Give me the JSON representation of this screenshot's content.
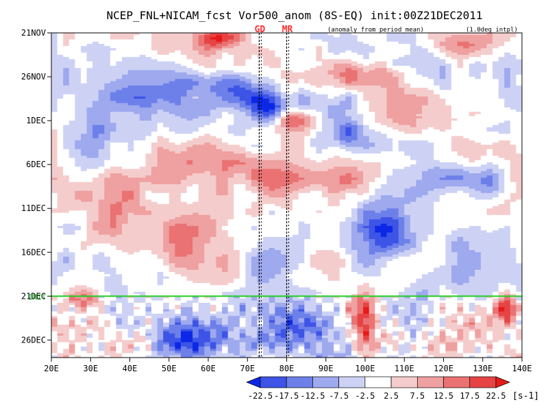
{
  "chart_data": {
    "type": "heatmap",
    "title": "NCEP_FNL+NICAM_fcst Vor500_anom (8S-EQ) init:00Z21DEC2011",
    "subtitle_left": "(anomaly from period mean)",
    "subtitle_right": "(1.0deg intpl)",
    "xlabel": "",
    "ylabel": "",
    "x_range": [
      20,
      140
    ],
    "x_ticks": [
      {
        "value": 20,
        "label": "20E"
      },
      {
        "value": 30,
        "label": "30E"
      },
      {
        "value": 40,
        "label": "40E"
      },
      {
        "value": 50,
        "label": "50E"
      },
      {
        "value": 60,
        "label": "60E"
      },
      {
        "value": 70,
        "label": "70E"
      },
      {
        "value": 80,
        "label": "80E"
      },
      {
        "value": 90,
        "label": "90E"
      },
      {
        "value": 100,
        "label": "100E"
      },
      {
        "value": 110,
        "label": "110E"
      },
      {
        "value": 120,
        "label": "120E"
      },
      {
        "value": 130,
        "label": "130E"
      },
      {
        "value": 140,
        "label": "140E"
      }
    ],
    "y_range_days": [
      0,
      37
    ],
    "y_ticks": [
      {
        "day": 0,
        "label": "21NOV"
      },
      {
        "day": 5,
        "label": "26NOV"
      },
      {
        "day": 10,
        "label": "1DEC"
      },
      {
        "day": 15,
        "label": "6DEC"
      },
      {
        "day": 20,
        "label": "11DEC"
      },
      {
        "day": 25,
        "label": "16DEC"
      },
      {
        "day": 30,
        "label": "21DEC"
      },
      {
        "day": 35,
        "label": "26DEC"
      }
    ],
    "init_line": {
      "day": 30,
      "label": "INIT",
      "color": "#22cc22"
    },
    "markers": [
      {
        "label": "GD",
        "lon": 73,
        "color": "#ff3030"
      },
      {
        "label": "MR",
        "lon": 80,
        "color": "#ff3030"
      }
    ],
    "colorbar": {
      "levels": [
        -22.5,
        -17.5,
        -12.5,
        -7.5,
        -2.5,
        2.5,
        7.5,
        12.5,
        17.5,
        22.5
      ],
      "tick_labels": [
        "-22.5",
        "-17.5",
        "-12.5",
        "-7.5",
        "-2.5",
        "2.5",
        "7.5",
        "12.5",
        "17.5",
        "22.5"
      ],
      "colors": [
        "#0c28e6",
        "#3d54e6",
        "#6d80ea",
        "#9ea9ee",
        "#cdd2f5",
        "#ffffff",
        "#f5cccc",
        "#efa0a0",
        "#ea7272",
        "#e64444",
        "#e61a1a"
      ],
      "unit": "[s-1]"
    },
    "features": [
      {
        "lon": 45,
        "day": 6,
        "value": -14,
        "sx": 14,
        "sy": 3
      },
      {
        "lon": 68,
        "day": 7,
        "value": -18,
        "sx": 9,
        "sy": 2.2
      },
      {
        "lon": 76,
        "day": 9,
        "value": -22,
        "sx": 5,
        "sy": 1.6
      },
      {
        "lon": 90,
        "day": 8,
        "value": -12,
        "sx": 12,
        "sy": 2
      },
      {
        "lon": 95,
        "day": 11.5,
        "value": -17,
        "sx": 7,
        "sy": 1.8
      },
      {
        "lon": 110,
        "day": 12,
        "value": -10,
        "sx": 8,
        "sy": 2
      },
      {
        "lon": 120,
        "day": 16,
        "value": -14,
        "sx": 9,
        "sy": 2.2
      },
      {
        "lon": 132,
        "day": 17,
        "value": -13,
        "sx": 6,
        "sy": 2
      },
      {
        "lon": 105,
        "day": 22,
        "value": -15,
        "sx": 6,
        "sy": 4
      },
      {
        "lon": 100,
        "day": 26,
        "value": -10,
        "sx": 5,
        "sy": 3
      },
      {
        "lon": 75,
        "day": 27,
        "value": -16,
        "sx": 8,
        "sy": 3
      },
      {
        "lon": 55,
        "day": 35,
        "value": -22,
        "sx": 8,
        "sy": 2.5
      },
      {
        "lon": 82,
        "day": 33,
        "value": -17,
        "sx": 10,
        "sy": 3
      },
      {
        "lon": 113,
        "day": 32,
        "value": -15,
        "sx": 6,
        "sy": 3
      },
      {
        "lon": 30,
        "day": 12,
        "value": -9,
        "sx": 6,
        "sy": 3
      },
      {
        "lon": 125,
        "day": 27,
        "value": -8,
        "sx": 7,
        "sy": 3
      },
      {
        "lon": 63,
        "day": 0.7,
        "value": 20,
        "sx": 5,
        "sy": 1.2
      },
      {
        "lon": 125,
        "day": 1.5,
        "value": 18,
        "sx": 8,
        "sy": 1.5
      },
      {
        "lon": 100,
        "day": 5,
        "value": 13,
        "sx": 10,
        "sy": 1.5
      },
      {
        "lon": 82,
        "day": 9.8,
        "value": 21,
        "sx": 5,
        "sy": 1.2
      },
      {
        "lon": 60,
        "day": 14.5,
        "value": 13,
        "sx": 14,
        "sy": 3
      },
      {
        "lon": 80,
        "day": 16.5,
        "value": 15,
        "sx": 10,
        "sy": 2.5
      },
      {
        "lon": 95,
        "day": 17,
        "value": 14,
        "sx": 7,
        "sy": 2.5
      },
      {
        "lon": 35,
        "day": 20,
        "value": 10,
        "sx": 8,
        "sy": 3
      },
      {
        "lon": 50,
        "day": 24,
        "value": 10,
        "sx": 10,
        "sy": 3
      },
      {
        "lon": 100,
        "day": 32.5,
        "value": 23,
        "sx": 3,
        "sy": 3.5
      },
      {
        "lon": 136,
        "day": 31.5,
        "value": 20,
        "sx": 3,
        "sy": 1.5
      },
      {
        "lon": 28,
        "day": 30.5,
        "value": 15,
        "sx": 5,
        "sy": 1.2
      },
      {
        "lon": 60,
        "day": 28,
        "value": 9,
        "sx": 10,
        "sy": 2.5
      },
      {
        "lon": 115,
        "day": 10,
        "value": 8,
        "sx": 10,
        "sy": 3
      }
    ]
  }
}
